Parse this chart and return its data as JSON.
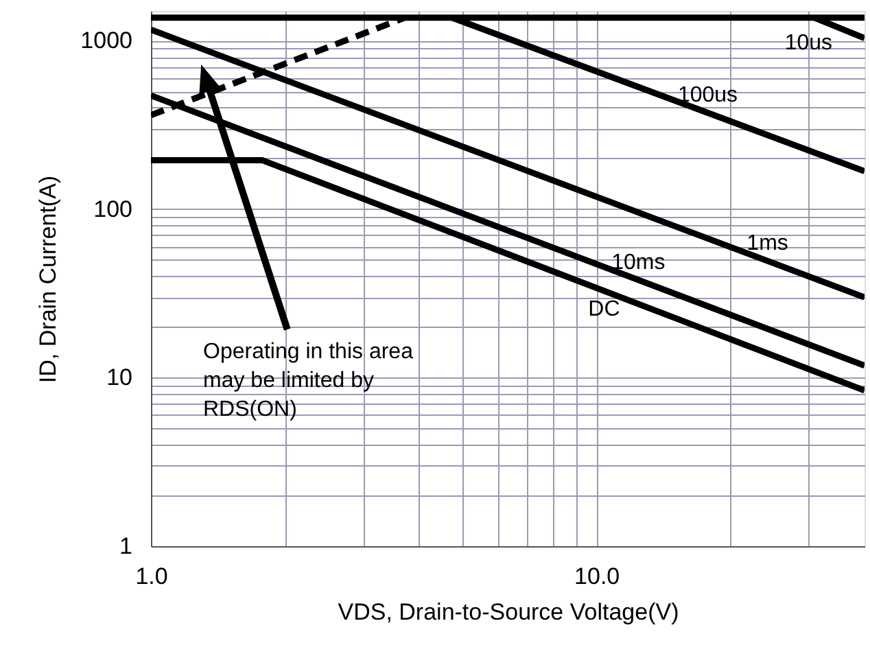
{
  "chart_data": {
    "type": "line",
    "xlabel": "VDS, Drain-to-Source Voltage(V)",
    "ylabel": "ID, Drain Current(A)",
    "log": "xy",
    "grid": true,
    "marker": "none",
    "xlim": [
      1,
      40
    ],
    "ylim": [
      1,
      1500
    ],
    "xticks": [
      {
        "value": 1,
        "label": "1.0"
      },
      {
        "value": 2,
        "label": null
      },
      {
        "value": 3,
        "label": null
      },
      {
        "value": 4,
        "label": null
      },
      {
        "value": 5,
        "label": null
      },
      {
        "value": 6,
        "label": null
      },
      {
        "value": 7,
        "label": null
      },
      {
        "value": 8,
        "label": null
      },
      {
        "value": 9,
        "label": null
      },
      {
        "value": 10,
        "label": "10.0"
      },
      {
        "value": 20,
        "label": null
      },
      {
        "value": 30,
        "label": null
      }
    ],
    "yticks": [
      1,
      {
        "value": 2,
        "label": null
      },
      {
        "value": 3,
        "label": null
      },
      {
        "value": 4,
        "label": null
      },
      {
        "value": 5,
        "label": null
      },
      {
        "value": 6,
        "label": null
      },
      {
        "value": 7,
        "label": null
      },
      {
        "value": 8,
        "label": null
      },
      {
        "value": 9,
        "label": null
      },
      10,
      {
        "value": 20,
        "label": null
      },
      {
        "value": 30,
        "label": null
      },
      {
        "value": 40,
        "label": null
      },
      {
        "value": 50,
        "label": null
      },
      {
        "value": 60,
        "label": null
      },
      {
        "value": 70,
        "label": null
      },
      {
        "value": 80,
        "label": null
      },
      {
        "value": 90,
        "label": null
      },
      100,
      {
        "value": 200,
        "label": null
      },
      {
        "value": 300,
        "label": null
      },
      {
        "value": 400,
        "label": null
      },
      {
        "value": 500,
        "label": null
      },
      {
        "value": 600,
        "label": null
      },
      {
        "value": 700,
        "label": null
      },
      {
        "value": 800,
        "label": null
      },
      {
        "value": 900,
        "label": null
      },
      1000
    ],
    "series": [
      {
        "color": "#000000",
        "x": [
          1,
          40
        ],
        "values": [
          1370,
          1370
        ],
        "line_style": "solid"
      },
      {
        "color": "#000000",
        "x": [
          1,
          3.72
        ],
        "values": [
          361,
          1370
        ],
        "line_style": "dashed"
      },
      {
        "name": "10us",
        "color": "#000000",
        "x": [
          30.8,
          40
        ],
        "values": [
          1370,
          1035
        ],
        "line_style": "solid"
      },
      {
        "name": "100us",
        "color": "#000000",
        "x": [
          4.74,
          40
        ],
        "values": [
          1370,
          168
        ],
        "line_style": "solid"
      },
      {
        "name": "1ms",
        "color": "#000000",
        "x": [
          1,
          40
        ],
        "values": [
          1162,
          30
        ],
        "line_style": "solid"
      },
      {
        "name": "10ms",
        "color": "#000000",
        "x": [
          1,
          40
        ],
        "values": [
          473,
          11.8
        ],
        "line_style": "solid"
      },
      {
        "name": "DC",
        "color": "#000000",
        "x": [
          1,
          1.78,
          40
        ],
        "values": [
          195,
          195,
          8.4
        ],
        "line_style": "solid"
      }
    ],
    "annotations": [
      "Operating in this area\nmay be limited by\nRDS(ON)"
    ]
  }
}
